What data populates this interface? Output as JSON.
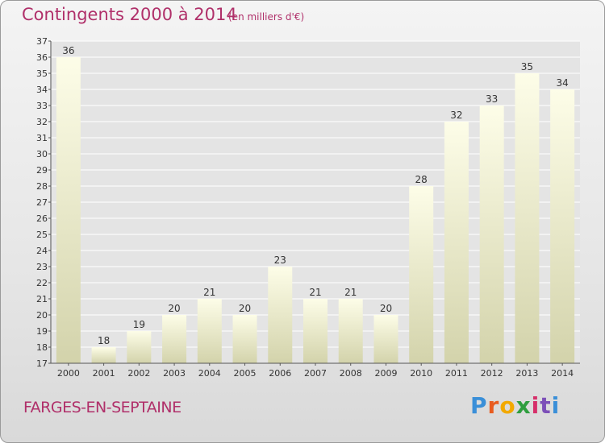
{
  "header": {
    "title": "Contingents 2000 à 2014",
    "subtitle": "(en milliers d'€)"
  },
  "footer": {
    "place": "FARGES-EN-SEPTAINE",
    "logo_letters": [
      "P",
      "r",
      "o",
      "x",
      "i",
      "t",
      "i"
    ]
  },
  "chart_data": {
    "type": "bar",
    "title": "Contingents 2000 à 2014",
    "subtitle": "(en milliers d'€)",
    "xlabel": "",
    "ylabel": "",
    "categories": [
      "2000",
      "2001",
      "2002",
      "2003",
      "2004",
      "2005",
      "2006",
      "2007",
      "2008",
      "2009",
      "2010",
      "2011",
      "2012",
      "2013",
      "2014"
    ],
    "values": [
      36,
      18,
      19,
      20,
      21,
      20,
      23,
      21,
      21,
      20,
      28,
      32,
      33,
      35,
      34
    ],
    "ylim": [
      17,
      37
    ],
    "yticks": [
      17,
      18,
      19,
      20,
      21,
      22,
      23,
      24,
      25,
      26,
      27,
      28,
      29,
      30,
      31,
      32,
      33,
      34,
      35,
      36,
      37
    ],
    "grid": true,
    "colors": {
      "bar_top": "#fdfde6",
      "bar_bottom": "#d4d4aa",
      "text": "#333333",
      "grid": "#ffffff"
    }
  }
}
